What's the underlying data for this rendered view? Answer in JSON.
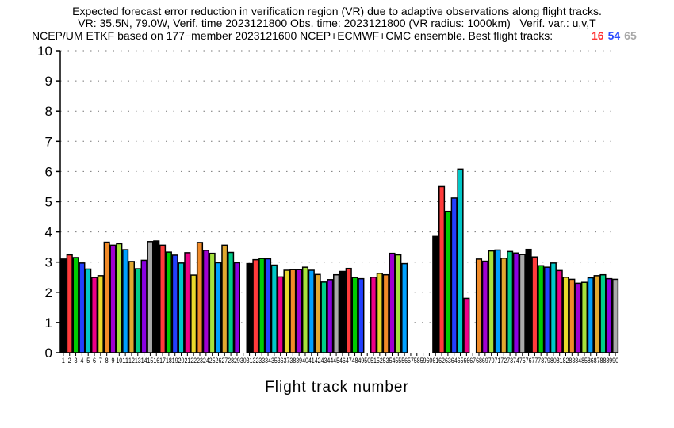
{
  "chart_data": {
    "type": "bar",
    "title_lines": [
      "Expected forecast error reduction in verification region (VR) due to adaptive observations along flight tracks.",
      "VR: 35.5N, 79.0W, Verif. time 2023121800 Obs. time: 2023121800 (VR radius: 1000km)   Verif. var.: u,v,T",
      "NCEP/UM ETKF based on 177−member 2023121600 NCEP+ECMWF+CMC ensemble. Best flight tracks:"
    ],
    "best_tracks": [
      {
        "label": "16",
        "color": "#ff3333"
      },
      {
        "label": "54",
        "color": "#2a4bff"
      },
      {
        "label": "65",
        "color": "#a8a8a8"
      }
    ],
    "xlabel": "Flight track number",
    "ylabel": "",
    "ylim": [
      0,
      10
    ],
    "yticks": [
      "0",
      "1",
      "2",
      "3",
      "4",
      "5",
      "6",
      "7",
      "8",
      "9",
      "10"
    ],
    "grid": true,
    "color_cycle": [
      "#000000",
      "#ff3b3b",
      "#00cc00",
      "#2340ff",
      "#00c8c8",
      "#ee0088",
      "#e8d82c",
      "#f08a28",
      "#a000d0",
      "#a6e23c",
      "#00a0ff",
      "#e0a830",
      "#00cc88",
      "#8a00e0",
      "#aaaaaa"
    ],
    "x": [
      1,
      2,
      3,
      4,
      5,
      6,
      7,
      8,
      9,
      10,
      11,
      12,
      13,
      14,
      15,
      16,
      17,
      18,
      19,
      20,
      21,
      22,
      23,
      24,
      25,
      26,
      27,
      28,
      29,
      30,
      31,
      32,
      33,
      34,
      35,
      36,
      37,
      38,
      39,
      40,
      41,
      42,
      43,
      44,
      45,
      46,
      47,
      48,
      49,
      50,
      51,
      52,
      53,
      54,
      55,
      56,
      57,
      58,
      59,
      60,
      61,
      62,
      63,
      64,
      65,
      66,
      67,
      68,
      69,
      70,
      71,
      72,
      73,
      74,
      75,
      76,
      77,
      78,
      79,
      80,
      81,
      82,
      83,
      84,
      85,
      86,
      87,
      88,
      89,
      90
    ],
    "values": [
      3.1,
      3.24,
      3.15,
      2.97,
      2.77,
      2.49,
      2.55,
      3.66,
      3.56,
      3.61,
      3.41,
      3.02,
      2.78,
      3.06,
      3.68,
      3.7,
      3.56,
      3.33,
      3.23,
      2.97,
      3.31,
      2.57,
      3.65,
      3.39,
      3.29,
      2.98,
      3.56,
      3.32,
      2.98,
      0,
      2.95,
      3.08,
      3.12,
      3.11,
      2.9,
      2.51,
      2.73,
      2.75,
      2.75,
      2.83,
      2.73,
      2.59,
      2.34,
      2.42,
      2.58,
      2.69,
      2.79,
      2.49,
      2.45,
      0,
      2.5,
      2.63,
      2.58,
      3.29,
      3.24,
      2.95,
      0,
      0,
      0,
      0,
      3.85,
      5.5,
      4.68,
      5.12,
      6.08,
      1.8,
      0,
      3.1,
      3.03,
      3.37,
      3.4,
      3.13,
      3.35,
      3.3,
      3.25,
      3.42,
      3.17,
      2.88,
      2.83,
      2.97,
      2.72,
      2.5,
      2.43,
      2.3,
      2.33,
      2.48,
      2.55,
      2.58,
      2.45,
      2.43
    ]
  }
}
